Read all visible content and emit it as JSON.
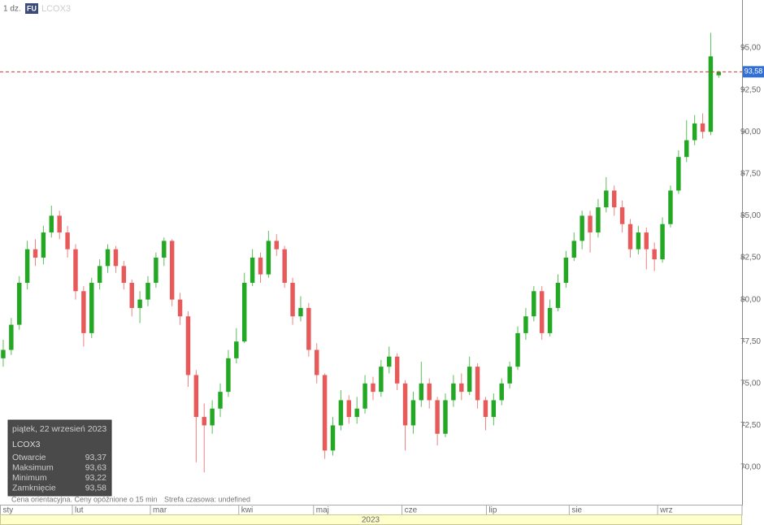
{
  "chart_data": {
    "type": "candlestick",
    "header": {
      "interval": "1 dz.",
      "badge": "FU",
      "symbol": "LCOX3"
    },
    "open": [
      76.5,
      77.0,
      78.5,
      81.0,
      83.0,
      82.5,
      84.0,
      85.0,
      84.0,
      83.0,
      80.5,
      78.0,
      81.0,
      82.0,
      83.0,
      82.0,
      81.0,
      79.5,
      80.0,
      81.0,
      82.5,
      83.5,
      80.0,
      79.0,
      75.5,
      73.0,
      72.5,
      73.5,
      74.5,
      76.5,
      77.5,
      81.0,
      82.5,
      81.5,
      83.5,
      83.0,
      81.0,
      79.0,
      79.5,
      77.0,
      75.5,
      71.0,
      72.5,
      74.0,
      73.0,
      73.5,
      75.0,
      74.5,
      76.0,
      76.6,
      75.0,
      72.5,
      74.0,
      75.0,
      74.0,
      72.0,
      74.0,
      75.0,
      74.5,
      76.0,
      74.0,
      73.0,
      74.0,
      75.0,
      76.0,
      78.0,
      79.0,
      80.5,
      78.0,
      79.5,
      81.0,
      82.5,
      83.5,
      85.0,
      84.0,
      85.5,
      86.5,
      85.5,
      84.5,
      83.0,
      84.0,
      83.0,
      82.4,
      84.5,
      86.5,
      88.5,
      89.5,
      90.5,
      90.0,
      93.37
    ],
    "high": [
      77.6,
      78.9,
      81.4,
      83.5,
      83.6,
      84.4,
      85.6,
      85.3,
      84.4,
      83.3,
      80.8,
      81.3,
      82.4,
      83.3,
      83.2,
      82.3,
      81.2,
      80.5,
      81.4,
      82.8,
      83.7,
      83.6,
      80.4,
      79.3,
      75.8,
      73.8,
      74.0,
      75.0,
      77.0,
      78.3,
      81.6,
      83.0,
      82.8,
      84.1,
      83.9,
      83.2,
      81.3,
      80.2,
      79.8,
      77.4,
      75.6,
      73.0,
      74.6,
      74.3,
      74.2,
      75.5,
      75.4,
      76.4,
      77.2,
      76.8,
      75.2,
      74.5,
      76.3,
      75.3,
      74.2,
      74.4,
      75.5,
      75.6,
      76.6,
      76.2,
      74.2,
      74.4,
      75.3,
      76.3,
      78.4,
      79.5,
      80.8,
      80.8,
      80.0,
      81.5,
      82.9,
      84.0,
      85.3,
      85.3,
      86.0,
      87.3,
      86.8,
      85.9,
      84.8,
      84.4,
      84.3,
      83.4,
      84.9,
      86.8,
      88.9,
      90.7,
      91.0,
      91.1,
      95.9,
      93.63
    ],
    "low": [
      76.0,
      76.7,
      78.2,
      80.6,
      82.0,
      82.1,
      83.7,
      83.6,
      82.5,
      80.0,
      77.2,
      77.7,
      80.6,
      81.6,
      81.6,
      80.6,
      79.0,
      78.6,
      79.6,
      80.7,
      82.0,
      79.6,
      78.5,
      74.8,
      70.3,
      69.7,
      72.0,
      73.0,
      74.2,
      76.2,
      77.4,
      80.8,
      81.0,
      81.3,
      82.6,
      80.7,
      78.5,
      78.7,
      76.6,
      75.0,
      70.5,
      70.7,
      72.2,
      72.6,
      72.6,
      73.2,
      74.0,
      74.2,
      75.6,
      74.6,
      71.0,
      72.0,
      73.6,
      73.5,
      71.3,
      71.8,
      73.6,
      74.0,
      74.3,
      73.5,
      72.2,
      72.5,
      73.7,
      74.7,
      75.8,
      77.6,
      78.7,
      77.6,
      77.8,
      79.3,
      80.7,
      82.3,
      83.0,
      82.8,
      83.7,
      85.2,
      85.0,
      84.0,
      82.5,
      82.7,
      81.8,
      81.7,
      82.2,
      84.3,
      86.3,
      88.2,
      89.2,
      89.6,
      89.8,
      93.22
    ],
    "close": [
      77.0,
      78.5,
      81.0,
      83.0,
      82.5,
      84.0,
      85.0,
      84.0,
      83.0,
      80.5,
      78.0,
      81.0,
      82.0,
      83.0,
      82.0,
      81.0,
      79.5,
      80.0,
      81.0,
      82.5,
      83.5,
      80.0,
      79.0,
      75.5,
      73.0,
      72.5,
      73.5,
      74.5,
      76.5,
      77.5,
      81.0,
      82.5,
      81.5,
      83.5,
      83.0,
      81.0,
      79.0,
      79.5,
      77.0,
      75.5,
      71.0,
      72.5,
      74.0,
      73.0,
      73.5,
      75.0,
      74.5,
      76.0,
      76.6,
      75.0,
      72.5,
      74.0,
      75.0,
      74.0,
      72.0,
      74.0,
      75.0,
      74.5,
      76.0,
      74.0,
      73.0,
      74.0,
      75.0,
      76.0,
      78.0,
      79.0,
      80.5,
      78.0,
      79.5,
      81.0,
      82.5,
      83.5,
      85.0,
      84.0,
      85.5,
      86.5,
      85.5,
      84.5,
      83.0,
      84.0,
      83.0,
      82.4,
      84.5,
      86.5,
      88.5,
      89.5,
      90.5,
      90.0,
      94.5,
      93.58
    ],
    "up_color": "#22a822",
    "down_color": "#e85a5a",
    "xlim": [
      -0.4,
      91.9
    ],
    "xticks": [
      {
        "value": -0.4,
        "label": "sty"
      },
      {
        "value": 8.6,
        "label": "lut"
      },
      {
        "value": 18.3,
        "label": "mar"
      },
      {
        "value": 29.3,
        "label": "kwi"
      },
      {
        "value": 38.6,
        "label": "maj"
      },
      {
        "value": 49.6,
        "label": "cze"
      },
      {
        "value": 60.1,
        "label": "lip"
      },
      {
        "value": 70.4,
        "label": "sie"
      },
      {
        "value": 81.4,
        "label": "wrz"
      }
    ],
    "year_label": "2023",
    "ylim": [
      67.82,
      97.86
    ],
    "yticks": [
      {
        "value": 70,
        "label": "70,00"
      },
      {
        "value": 72.5,
        "label": "72,50"
      },
      {
        "value": 75,
        "label": "75,00"
      },
      {
        "value": 77.5,
        "label": "77,50"
      },
      {
        "value": 80,
        "label": "80,00"
      },
      {
        "value": 82.5,
        "label": "82,50"
      },
      {
        "value": 85,
        "label": "85,00"
      },
      {
        "value": 87.5,
        "label": "87,50"
      },
      {
        "value": 90,
        "label": "90,00"
      },
      {
        "value": 92.5,
        "label": "92,50"
      },
      {
        "value": 95,
        "label": "95,00"
      }
    ],
    "current_price": {
      "value": 93.58,
      "label": "93,58"
    },
    "tooltip": {
      "date": "piątek, 22 wrzesień 2023",
      "symbol": "LCOX3",
      "rows": [
        [
          "Otwarcie",
          "93,37"
        ],
        [
          "Maksimum",
          "93,63"
        ],
        [
          "Minimum",
          "93,22"
        ],
        [
          "Zamknięcie",
          "93,58"
        ]
      ]
    },
    "footer": [
      "Cena orientacyjna. Ceny opóźnione o 15 min",
      "Strefa czasowa: undefined"
    ]
  }
}
